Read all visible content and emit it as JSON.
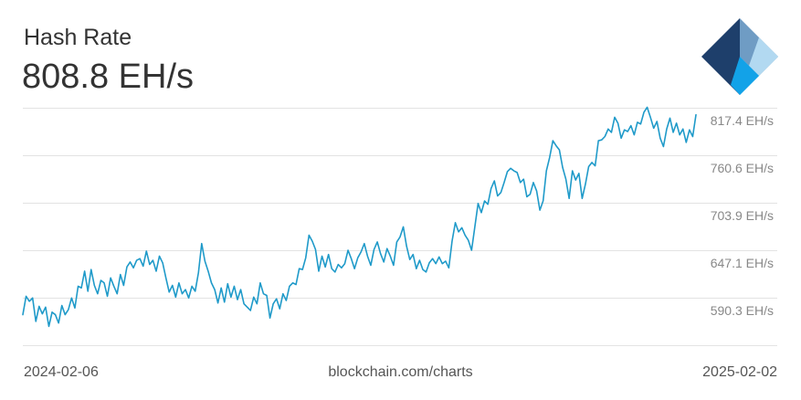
{
  "header": {
    "title": "Hash Rate",
    "current_value": "808.8 EH/s"
  },
  "footer": {
    "start_date": "2024-02-06",
    "source": "blockchain.com/charts",
    "end_date": "2025-02-02"
  },
  "logo": {
    "icon": "blockchain-diamond-logo",
    "colors": [
      "#1e3f6b",
      "#6f9cc4",
      "#12a2e8",
      "#b2d9f1"
    ]
  },
  "chart_data": {
    "type": "line",
    "title": "Hash Rate",
    "xlabel": "",
    "ylabel": "",
    "unit": "EH/s",
    "x_range": [
      "2024-02-06",
      "2025-02-02"
    ],
    "y_ticks": [
      {
        "value": 590.3,
        "label": "590.3 EH/s"
      },
      {
        "value": 647.1,
        "label": "647.1 EH/s"
      },
      {
        "value": 703.9,
        "label": "703.9 EH/s"
      },
      {
        "value": 760.6,
        "label": "760.6 EH/s"
      },
      {
        "value": 817.4,
        "label": "817.4 EH/s"
      }
    ],
    "ylim": [
      533.5,
      817.4
    ],
    "grid": true,
    "line_color": "#1f9ac9",
    "series": [
      {
        "values": [
          570,
          592,
          586,
          590,
          562,
          580,
          571,
          579,
          556,
          573,
          570,
          560,
          581,
          570,
          576,
          590,
          578,
          604,
          602,
          622,
          598,
          624,
          605,
          595,
          611,
          608,
          592,
          614,
          604,
          595,
          618,
          605,
          627,
          633,
          626,
          635,
          637,
          628,
          646,
          630,
          635,
          622,
          640,
          632,
          614,
          597,
          605,
          591,
          608,
          595,
          600,
          590,
          604,
          598,
          620,
          655,
          634,
          622,
          608,
          600,
          584,
          602,
          585,
          607,
          591,
          604,
          588,
          600,
          583,
          579,
          575,
          591,
          583,
          608,
          595,
          593,
          566,
          583,
          589,
          577,
          595,
          587,
          604,
          608,
          606,
          625,
          624,
          638,
          665,
          658,
          648,
          622,
          640,
          627,
          642,
          625,
          621,
          630,
          626,
          631,
          647,
          637,
          625,
          638,
          645,
          655,
          640,
          629,
          648,
          657,
          643,
          633,
          649,
          640,
          629,
          657,
          663,
          675,
          652,
          636,
          642,
          625,
          635,
          624,
          621,
          632,
          637,
          631,
          639,
          631,
          634,
          626,
          658,
          680,
          669,
          674,
          665,
          659,
          647,
          675,
          703,
          692,
          706,
          702,
          721,
          730,
          712,
          716,
          728,
          741,
          745,
          742,
          740,
          728,
          732,
          711,
          714,
          728,
          718,
          695,
          706,
          742,
          758,
          778,
          772,
          767,
          746,
          732,
          709,
          742,
          731,
          739,
          709,
          726,
          747,
          752,
          748,
          778,
          779,
          783,
          792,
          788,
          806,
          799,
          781,
          791,
          789,
          796,
          785,
          800,
          798,
          812,
          818,
          806,
          793,
          801,
          781,
          771,
          792,
          805,
          788,
          799,
          785,
          792,
          776,
          791,
          783,
          809
        ]
      }
    ]
  }
}
